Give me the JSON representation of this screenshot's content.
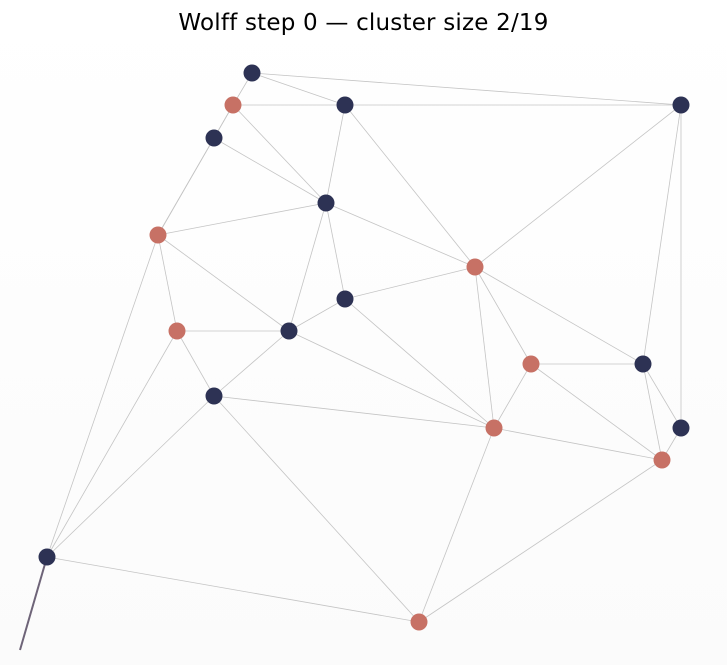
{
  "title": "Wolff step 0 — cluster size 2/19",
  "colors": {
    "spin_up": "#2d3254",
    "spin_down": "#c77165",
    "edge": "#c4c4c4",
    "cluster_edge": "#6e6478"
  },
  "nodes": [
    {
      "id": 0,
      "spin": "up"
    },
    {
      "id": 1,
      "spin": "down"
    },
    {
      "id": 2,
      "spin": "up"
    },
    {
      "id": 3,
      "spin": "up"
    },
    {
      "id": 4,
      "spin": "up"
    },
    {
      "id": 5,
      "spin": "up"
    },
    {
      "id": 6,
      "spin": "down"
    },
    {
      "id": 7,
      "spin": "down"
    },
    {
      "id": 8,
      "spin": "up"
    },
    {
      "id": 9,
      "spin": "down"
    },
    {
      "id": 10,
      "spin": "up"
    },
    {
      "id": 11,
      "spin": "up"
    },
    {
      "id": 12,
      "spin": "down"
    },
    {
      "id": 13,
      "spin": "up"
    },
    {
      "id": 14,
      "spin": "down"
    },
    {
      "id": 15,
      "spin": "up"
    },
    {
      "id": 16,
      "spin": "down"
    },
    {
      "id": 17,
      "spin": "up"
    },
    {
      "id": 18,
      "spin": "down"
    }
  ],
  "edges": [
    [
      0,
      1
    ],
    [
      0,
      2
    ],
    [
      0,
      4
    ],
    [
      1,
      4
    ],
    [
      1,
      3
    ],
    [
      1,
      5
    ],
    [
      4,
      5
    ],
    [
      4,
      16
    ],
    [
      3,
      5
    ],
    [
      3,
      6
    ],
    [
      3,
      6
    ],
    [
      6,
      5
    ],
    [
      6,
      7
    ],
    [
      6,
      9
    ],
    [
      6,
      17
    ],
    [
      5,
      11
    ],
    [
      5,
      8
    ],
    [
      5,
      16
    ],
    [
      11,
      8
    ],
    [
      11,
      13
    ],
    [
      9,
      7
    ],
    [
      9,
      10
    ],
    [
      9,
      12
    ],
    [
      9,
      16
    ],
    [
      10,
      12
    ],
    [
      10,
      13
    ],
    [
      13,
      12
    ],
    [
      13,
      14
    ],
    [
      13,
      15
    ],
    [
      15,
      18
    ],
    [
      14,
      15
    ],
    [
      14,
      16
    ],
    [
      12,
      16
    ],
    [
      12,
      18
    ],
    [
      17,
      13
    ],
    [
      17,
      18
    ],
    [
      16,
      4
    ],
    [
      8,
      9
    ],
    [
      8,
      12
    ],
    [
      7,
      17
    ],
    [
      13,
      12
    ],
    [
      2,
      8
    ],
    [
      4,
      13
    ],
    [
      4,
      14
    ],
    [
      14,
      18
    ],
    [
      11,
      9
    ]
  ],
  "cluster_edges": [
    [
      17,
      "offscreen"
    ]
  ]
}
